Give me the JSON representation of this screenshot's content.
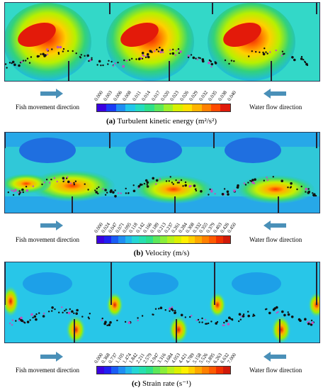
{
  "panels": [
    {
      "letter": "(a)",
      "caption": "Turbulent kinetic energy (m²/s²)",
      "ticks": [
        "0.000",
        "0.003",
        "0.006",
        "0.008",
        "0.011",
        "0.014",
        "0.017",
        "0.020",
        "0.023",
        "0.026",
        "0.029",
        "0.032",
        "0.035",
        "0.038",
        "0.040"
      ],
      "palette": "tke"
    },
    {
      "letter": "(b)",
      "caption": "Velocity (m/s)",
      "ticks": [
        "0.000",
        "0.024",
        "0.047",
        "0.071",
        "0.095",
        "0.118",
        "0.142",
        "0.166",
        "0.189",
        "0.213",
        "0.237",
        "0.261",
        "0.284",
        "0.308",
        "0.332",
        "0.355",
        "0.379",
        "0.403",
        "0.426",
        "0.450"
      ],
      "palette": "vel"
    },
    {
      "letter": "(c)",
      "caption": "Strain rate (s⁻¹)",
      "ticks": [
        "0.000",
        "0.368",
        "0.737",
        "1.105",
        "1.474",
        "1.842",
        "2.211",
        "2.579",
        "2.947",
        "3.316",
        "3.684",
        "4.053",
        "4.421",
        "4.789",
        "5.158",
        "5.526",
        "5.895",
        "6.263",
        "6.632",
        "7.000"
      ],
      "palette": "strain"
    }
  ],
  "labels": {
    "fish": "Fish movement  direction",
    "water": "Water flow  direction"
  },
  "colors": {
    "arrow": "#4a90b8",
    "background_field": "#2ec5e0"
  }
}
